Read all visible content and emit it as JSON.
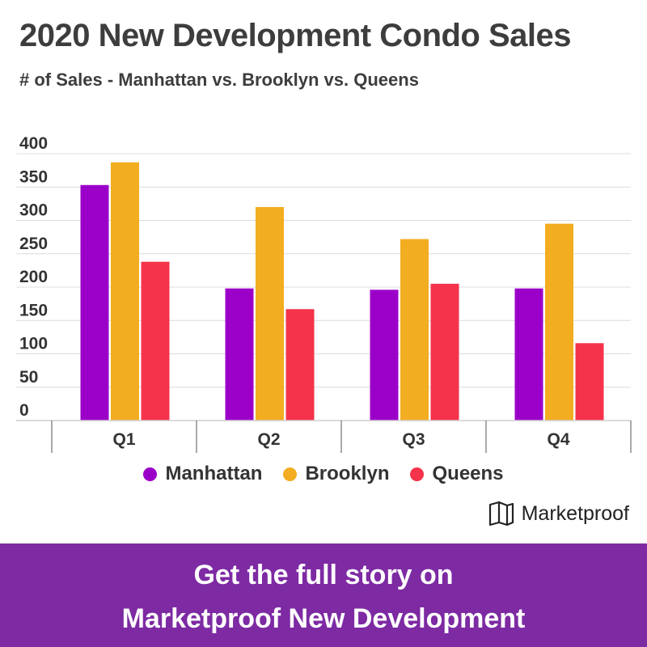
{
  "header": {
    "title": "2020 New Development Condo Sales",
    "subtitle": "# of Sales - Manhattan vs. Brooklyn vs. Queens"
  },
  "chart_data": {
    "type": "bar",
    "categories": [
      "Q1",
      "Q2",
      "Q3",
      "Q4"
    ],
    "series": [
      {
        "name": "Manhattan",
        "color": "#9b00c9",
        "values": [
          353,
          198,
          196,
          198
        ]
      },
      {
        "name": "Brooklyn",
        "color": "#f2ad20",
        "values": [
          387,
          320,
          272,
          295
        ]
      },
      {
        "name": "Queens",
        "color": "#f5334b",
        "values": [
          238,
          167,
          205,
          116
        ]
      }
    ],
    "yticks": [
      "400",
      "350",
      "300",
      "250",
      "200",
      "150",
      "100",
      "50",
      "0"
    ],
    "ylim": [
      0,
      400
    ],
    "grid": true,
    "legend_position": "bottom"
  },
  "legend": [
    {
      "label": "Manhattan",
      "color": "#9b00c9"
    },
    {
      "label": "Brooklyn",
      "color": "#f2ad20"
    },
    {
      "label": "Queens",
      "color": "#f5334b"
    }
  ],
  "brand": {
    "name": "Marketproof",
    "icon": "marketproof-logo-icon"
  },
  "banner": {
    "line1": "Get the full story on",
    "line2": "Marketproof New Development",
    "color": "#7d2aa3"
  }
}
